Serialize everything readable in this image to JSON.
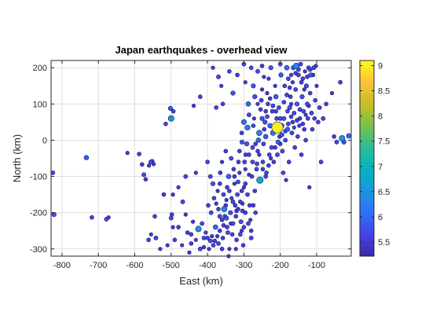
{
  "chart_data": {
    "type": "scatter",
    "title": "Japan earthquakes - overhead view",
    "xlabel": "East (km)",
    "ylabel": "North (km)",
    "xlim": [
      -830,
      -5
    ],
    "ylim": [
      -320,
      220
    ],
    "xticks": [
      -800,
      -700,
      -600,
      -500,
      -400,
      -300,
      -200,
      -100
    ],
    "xtick_labels": [
      "-800",
      "-700",
      "-600",
      "-500",
      "-400",
      "-300",
      "-200",
      "-100"
    ],
    "yticks": [
      -300,
      -200,
      -100,
      0,
      100,
      200
    ],
    "ytick_labels": [
      "-300",
      "-200",
      "-100",
      "0",
      "100",
      "200"
    ],
    "grid": true,
    "colorbar": {
      "label_values": [
        5.5,
        6,
        6.5,
        7,
        7.5,
        8,
        8.5,
        9
      ],
      "tick_labels": [
        "5.5",
        "6",
        "6.5",
        "7",
        "7.5",
        "8",
        "8.5",
        "9"
      ],
      "range": [
        5.22,
        9.1
      ],
      "colormap": [
        "#3e26a8",
        "#4443e8",
        "#2f6ffd",
        "#1898dc",
        "#07b1c1",
        "#2abf94",
        "#76c14b",
        "#c9be27",
        "#fbc33a",
        "#f9fb14"
      ]
    },
    "points": [
      [
        -825,
        -90,
        5.6
      ],
      [
        -822,
        -205,
        5.8
      ],
      [
        -733,
        -48,
        5.9
      ],
      [
        -718,
        -213,
        5.6
      ],
      [
        -678,
        -218,
        5.7
      ],
      [
        -672,
        -213,
        5.5
      ],
      [
        -620,
        -35,
        5.5
      ],
      [
        -588,
        -38,
        5.6
      ],
      [
        -580,
        -67,
        5.6
      ],
      [
        -575,
        -95,
        5.7
      ],
      [
        -570,
        -108,
        5.6
      ],
      [
        -561,
        -70,
        5.5
      ],
      [
        -556,
        -60,
        5.7
      ],
      [
        -552,
        -58,
        5.6
      ],
      [
        -548,
        -66,
        5.5
      ],
      [
        -562,
        -275,
        5.6
      ],
      [
        -555,
        -260,
        5.5
      ],
      [
        -542,
        -270,
        5.7
      ],
      [
        -530,
        -300,
        5.5
      ],
      [
        -500,
        60,
        6.5
      ],
      [
        -502,
        88,
        5.8
      ],
      [
        -494,
        80,
        5.6
      ],
      [
        -495,
        -150,
        5.5
      ],
      [
        -498,
        -205,
        5.6
      ],
      [
        -500,
        -215,
        5.7
      ],
      [
        -495,
        -240,
        5.5
      ],
      [
        -490,
        -275,
        5.6
      ],
      [
        -470,
        -290,
        5.5
      ],
      [
        -468,
        -170,
        5.7
      ],
      [
        -460,
        -205,
        5.5
      ],
      [
        -455,
        -255,
        5.6
      ],
      [
        -445,
        -260,
        5.6
      ],
      [
        -440,
        -225,
        5.5
      ],
      [
        -432,
        -275,
        5.5
      ],
      [
        -425,
        -245,
        6.5
      ],
      [
        -420,
        120,
        5.6
      ],
      [
        -415,
        -230,
        5.7
      ],
      [
        -410,
        -270,
        5.6
      ],
      [
        -405,
        -255,
        5.5
      ],
      [
        -400,
        -270,
        5.6
      ],
      [
        -396,
        -300,
        5.5
      ],
      [
        -392,
        -278,
        5.7
      ],
      [
        -388,
        -265,
        5.5
      ],
      [
        -384,
        -290,
        5.6
      ],
      [
        -380,
        -278,
        5.6
      ],
      [
        -378,
        -240,
        6.0
      ],
      [
        -376,
        90,
        5.6
      ],
      [
        -373,
        -265,
        5.5
      ],
      [
        -370,
        -285,
        5.7
      ],
      [
        -366,
        -250,
        5.6
      ],
      [
        -362,
        150,
        5.5
      ],
      [
        -360,
        -220,
        5.6
      ],
      [
        -358,
        -270,
        5.6
      ],
      [
        -354,
        -190,
        6.3
      ],
      [
        -352,
        -210,
        5.7
      ],
      [
        -350,
        -180,
        5.6
      ],
      [
        -348,
        -165,
        5.5
      ],
      [
        -346,
        -240,
        5.6
      ],
      [
        -344,
        -255,
        5.7
      ],
      [
        -342,
        -320,
        5.5
      ],
      [
        -340,
        -140,
        5.6
      ],
      [
        -337,
        -200,
        5.8
      ],
      [
        -334,
        -160,
        5.5
      ],
      [
        -332,
        -260,
        5.6
      ],
      [
        -330,
        -230,
        5.7
      ],
      [
        -328,
        -80,
        5.6
      ],
      [
        -326,
        -120,
        5.5
      ],
      [
        -324,
        -180,
        5.6
      ],
      [
        -322,
        -300,
        5.5
      ],
      [
        -320,
        -195,
        5.6
      ],
      [
        -318,
        -150,
        5.7
      ],
      [
        -315,
        -60,
        5.6
      ],
      [
        -312,
        -90,
        5.5
      ],
      [
        -310,
        -170,
        5.6
      ],
      [
        -308,
        -225,
        5.7
      ],
      [
        -306,
        -250,
        5.5
      ],
      [
        -304,
        -195,
        5.6
      ],
      [
        -302,
        -290,
        5.6
      ],
      [
        -300,
        -130,
        5.5
      ],
      [
        -298,
        -60,
        5.7
      ],
      [
        -295,
        -40,
        5.6
      ],
      [
        -292,
        -10,
        5.8
      ],
      [
        -290,
        35,
        6.2
      ],
      [
        -288,
        100,
        6.0
      ],
      [
        -286,
        70,
        5.7
      ],
      [
        -284,
        -180,
        5.6
      ],
      [
        -282,
        -220,
        5.5
      ],
      [
        -280,
        -270,
        5.7
      ],
      [
        -278,
        -100,
        5.6
      ],
      [
        -276,
        -20,
        5.7
      ],
      [
        -274,
        40,
        5.6
      ],
      [
        -272,
        60,
        5.5
      ],
      [
        -270,
        120,
        5.8
      ],
      [
        -268,
        -200,
        5.6
      ],
      [
        -265,
        -80,
        5.7
      ],
      [
        -262,
        -30,
        5.6
      ],
      [
        -260,
        0,
        6.0
      ],
      [
        -258,
        20,
        6.3
      ],
      [
        -256,
        -110,
        6.8
      ],
      [
        -254,
        85,
        5.6
      ],
      [
        -252,
        110,
        5.7
      ],
      [
        -250,
        140,
        5.5
      ],
      [
        -248,
        -60,
        5.6
      ],
      [
        -246,
        -10,
        5.7
      ],
      [
        -244,
        30,
        5.6
      ],
      [
        -242,
        50,
        5.8
      ],
      [
        -240,
        10,
        5.9
      ],
      [
        -238,
        -90,
        5.6
      ],
      [
        -236,
        65,
        5.7
      ],
      [
        -234,
        100,
        5.6
      ],
      [
        -232,
        170,
        5.5
      ],
      [
        -230,
        -40,
        5.6
      ],
      [
        -228,
        40,
        6.0
      ],
      [
        -226,
        200,
        5.8
      ],
      [
        -224,
        -20,
        5.7
      ],
      [
        -222,
        80,
        5.6
      ],
      [
        -220,
        20,
        6.2
      ],
      [
        -218,
        -60,
        5.6
      ],
      [
        -216,
        35,
        5.7
      ],
      [
        -214,
        150,
        5.5
      ],
      [
        -212,
        120,
        5.9
      ],
      [
        -210,
        60,
        5.7
      ],
      [
        -208,
        35,
        9.0
      ],
      [
        -206,
        -5,
        5.8
      ],
      [
        -204,
        90,
        5.6
      ],
      [
        -202,
        10,
        5.6
      ],
      [
        -200,
        210,
        5.7
      ],
      [
        -198,
        180,
        5.8
      ],
      [
        -196,
        40,
        6.0
      ],
      [
        -194,
        -30,
        5.7
      ],
      [
        -192,
        -90,
        5.6
      ],
      [
        -190,
        60,
        5.8
      ],
      [
        -188,
        150,
        5.6
      ],
      [
        -186,
        0,
        5.7
      ],
      [
        -184,
        -110,
        5.5
      ],
      [
        -182,
        200,
        6.0
      ],
      [
        -180,
        30,
        5.9
      ],
      [
        -178,
        170,
        5.7
      ],
      [
        -176,
        -60,
        5.6
      ],
      [
        -174,
        90,
        5.8
      ],
      [
        -172,
        120,
        5.6
      ],
      [
        -170,
        180,
        5.5
      ],
      [
        -168,
        20,
        5.7
      ],
      [
        -166,
        50,
        5.6
      ],
      [
        -164,
        200,
        5.8
      ],
      [
        -162,
        75,
        5.7
      ],
      [
        -160,
        -20,
        5.6
      ],
      [
        -158,
        140,
        5.7
      ],
      [
        -156,
        205,
        6.4
      ],
      [
        -154,
        100,
        5.8
      ],
      [
        -152,
        10,
        5.6
      ],
      [
        -150,
        180,
        5.7
      ],
      [
        -148,
        40,
        5.5
      ],
      [
        -146,
        60,
        5.6
      ],
      [
        -144,
        210,
        5.7
      ],
      [
        -142,
        -40,
        5.6
      ],
      [
        -140,
        120,
        5.8
      ],
      [
        -138,
        170,
        5.6
      ],
      [
        -136,
        80,
        5.7
      ],
      [
        -134,
        30,
        5.6
      ],
      [
        -132,
        190,
        5.5
      ],
      [
        -130,
        0,
        5.6
      ],
      [
        -128,
        150,
        5.8
      ],
      [
        -126,
        100,
        5.7
      ],
      [
        -124,
        60,
        5.6
      ],
      [
        -122,
        200,
        5.7
      ],
      [
        -120,
        -130,
        5.5
      ],
      [
        -118,
        130,
        5.6
      ],
      [
        -116,
        180,
        5.8
      ],
      [
        -112,
        30,
        5.6
      ],
      [
        -108,
        200,
        5.7
      ],
      [
        -104,
        110,
        5.6
      ],
      [
        -100,
        150,
        5.5
      ],
      [
        -96,
        50,
        5.6
      ],
      [
        -92,
        90,
        5.7
      ],
      [
        -88,
        -60,
        5.6
      ],
      [
        -82,
        60,
        5.7
      ],
      [
        -74,
        100,
        5.6
      ],
      [
        -58,
        130,
        5.5
      ],
      [
        -52,
        10,
        5.6
      ],
      [
        -45,
        -5,
        5.7
      ],
      [
        -35,
        160,
        5.6
      ],
      [
        -30,
        5,
        6.5
      ],
      [
        -25,
        -5,
        5.8
      ],
      [
        -12,
        12,
        6.0
      ],
      [
        -385,
        200,
        5.5
      ],
      [
        -370,
        175,
        5.7
      ],
      [
        -358,
        100,
        5.6
      ],
      [
        -340,
        190,
        5.6
      ],
      [
        -330,
        130,
        5.8
      ],
      [
        -318,
        180,
        5.6
      ],
      [
        -300,
        210,
        5.7
      ],
      [
        -296,
        160,
        5.5
      ],
      [
        -280,
        200,
        5.6
      ],
      [
        -274,
        150,
        5.8
      ],
      [
        -262,
        190,
        5.7
      ],
      [
        -250,
        205,
        5.6
      ],
      [
        -245,
        175,
        5.5
      ],
      [
        -438,
        95,
        5.5
      ],
      [
        -515,
        45,
        5.6
      ],
      [
        -460,
        -100,
        5.7
      ],
      [
        -432,
        -90,
        5.5
      ],
      [
        -400,
        -60,
        5.6
      ],
      [
        -392,
        -100,
        5.7
      ],
      [
        -385,
        -120,
        5.8
      ],
      [
        -365,
        -90,
        5.6
      ],
      [
        -360,
        -60,
        5.5
      ],
      [
        -350,
        -30,
        5.6
      ],
      [
        -342,
        -100,
        6.0
      ],
      [
        -335,
        -50,
        5.7
      ],
      [
        -312,
        -30,
        5.6
      ],
      [
        -305,
        -5,
        5.8
      ],
      [
        -306,
        20,
        5.6
      ],
      [
        -300,
        50,
        6.1
      ],
      [
        -296,
        -120,
        5.6
      ],
      [
        -290,
        -150,
        5.7
      ],
      [
        -286,
        -95,
        5.5
      ],
      [
        -270,
        -140,
        5.6
      ],
      [
        -264,
        -65,
        5.7
      ],
      [
        -274,
        -180,
        5.6
      ],
      [
        -320,
        -275,
        5.6
      ],
      [
        -340,
        -300,
        5.5
      ],
      [
        -360,
        -300,
        5.6
      ],
      [
        -410,
        -295,
        5.5
      ],
      [
        -420,
        -300,
        5.7
      ],
      [
        -445,
        -285,
        5.6
      ],
      [
        -450,
        -310,
        5.5
      ],
      [
        -480,
        -240,
        5.6
      ],
      [
        -510,
        -290,
        5.5
      ],
      [
        -545,
        -210,
        5.6
      ],
      [
        -480,
        -130,
        5.5
      ],
      [
        -520,
        -150,
        5.6
      ],
      [
        -300,
        -240,
        5.6
      ],
      [
        -310,
        -260,
        5.7
      ],
      [
        -322,
        -210,
        5.6
      ],
      [
        -336,
        -230,
        5.5
      ],
      [
        -348,
        -215,
        5.8
      ],
      [
        -356,
        -235,
        5.6
      ],
      [
        -366,
        -210,
        5.7
      ],
      [
        -370,
        -190,
        5.6
      ],
      [
        -376,
        -175,
        5.5
      ],
      [
        -382,
        -160,
        5.6
      ],
      [
        -390,
        -200,
        5.7
      ],
      [
        -398,
        -180,
        5.6
      ],
      [
        -330,
        -170,
        5.7
      ],
      [
        -316,
        -190,
        5.6
      ],
      [
        -304,
        -175,
        5.5
      ],
      [
        -296,
        -200,
        5.6
      ],
      [
        -288,
        -230,
        5.7
      ],
      [
        -280,
        -250,
        5.6
      ],
      [
        -346,
        -130,
        5.6
      ],
      [
        -356,
        -150,
        5.7
      ],
      [
        -366,
        -120,
        5.6
      ],
      [
        -372,
        -140,
        5.5
      ],
      [
        -326,
        -100,
        5.6
      ],
      [
        -316,
        -115,
        5.7
      ],
      [
        -306,
        -140,
        5.6
      ],
      [
        -296,
        -80,
        5.5
      ],
      [
        -286,
        -40,
        5.6
      ],
      [
        -276,
        -60,
        5.7
      ],
      [
        -268,
        -10,
        5.6
      ],
      [
        -258,
        -40,
        5.5
      ],
      [
        -248,
        -80,
        5.6
      ],
      [
        -240,
        -100,
        5.7
      ],
      [
        -232,
        -70,
        5.6
      ],
      [
        -226,
        -50,
        5.5
      ],
      [
        -214,
        -20,
        5.6
      ],
      [
        -208,
        -40,
        5.7
      ],
      [
        -200,
        -10,
        5.6
      ],
      [
        -196,
        15,
        5.8
      ],
      [
        -186,
        25,
        5.6
      ],
      [
        -178,
        45,
        5.7
      ],
      [
        -170,
        65,
        5.6
      ],
      [
        -162,
        35,
        5.5
      ],
      [
        -154,
        55,
        5.6
      ],
      [
        -146,
        85,
        5.7
      ],
      [
        -138,
        45,
        5.6
      ],
      [
        -130,
        70,
        5.5
      ],
      [
        -122,
        95,
        5.6
      ],
      [
        -114,
        75,
        5.7
      ],
      [
        -106,
        60,
        5.6
      ],
      [
        -212,
        80,
        5.6
      ],
      [
        -220,
        95,
        5.7
      ],
      [
        -228,
        115,
        5.6
      ],
      [
        -236,
        130,
        5.5
      ],
      [
        -190,
        105,
        5.6
      ],
      [
        -182,
        125,
        5.7
      ],
      [
        -174,
        145,
        5.6
      ],
      [
        -166,
        160,
        5.5
      ],
      [
        -158,
        185,
        5.6
      ],
      [
        -150,
        195,
        5.7
      ],
      [
        -142,
        160,
        5.6
      ],
      [
        -134,
        140,
        5.5
      ],
      [
        -126,
        175,
        5.6
      ],
      [
        -118,
        195,
        5.7
      ],
      [
        -110,
        180,
        5.6
      ],
      [
        -102,
        205,
        5.5
      ],
      [
        -180,
        80,
        5.6
      ],
      [
        -170,
        100,
        5.5
      ],
      [
        -200,
        60,
        5.7
      ],
      [
        -250,
        60,
        5.8
      ],
      [
        -240,
        80,
        5.6
      ],
      [
        -262,
        100,
        5.5
      ]
    ]
  }
}
